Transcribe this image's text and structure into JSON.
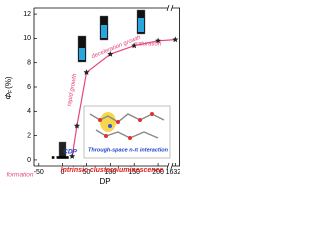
{
  "chart_data": {
    "type": "line",
    "xlabel": "DP",
    "ylabel": "Φ",
    "ylabel_sub": "F",
    "ylabel_unit": "(%)",
    "xlim": [
      [
        -60,
        225
      ],
      [
        16310,
        16340
      ]
    ],
    "xticks": [
      -50,
      0,
      50,
      100,
      150,
      200,
      16326
    ],
    "ylim": [
      -0.5,
      12.5
    ],
    "yticks": [
      0,
      2,
      4,
      6,
      8,
      10,
      12
    ],
    "series": [
      {
        "color": "#000000",
        "marker": "square",
        "x": [
          -20,
          -10,
          -5,
          0,
          5,
          10
        ],
        "values": [
          0.2,
          0.2,
          0.2,
          0.2,
          0.2,
          0.2
        ]
      },
      {
        "color": "#e8457a",
        "marker": "star",
        "x": [
          20,
          30,
          50,
          100,
          150,
          200,
          16326
        ],
        "values": [
          0.3,
          2.8,
          7.2,
          8.7,
          9.4,
          9.8,
          9.9
        ]
      }
    ],
    "annotations": [
      "formation",
      "rapid growth",
      "deceleration growth",
      "saturation",
      "CDP",
      "Intrinsic clusteroluminescence",
      "Through-space n-π interaction"
    ]
  }
}
